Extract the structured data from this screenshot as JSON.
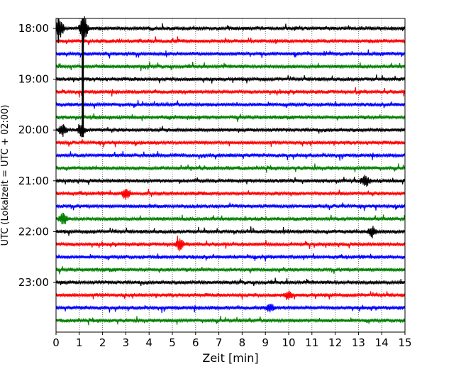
{
  "chart_data": {
    "type": "line",
    "title": "",
    "xlabel": "Zeit  [min]",
    "ylabel": "UTC (Lokalzeit = UTC + 02:00)",
    "xlim": [
      0,
      15
    ],
    "x_ticks": [
      "0",
      "1",
      "2",
      "3",
      "4",
      "5",
      "6",
      "7",
      "8",
      "9",
      "10",
      "11",
      "12",
      "13",
      "14",
      "15"
    ],
    "y_ticks": [
      {
        "label": "18:00",
        "row": 0
      },
      {
        "label": "19:00",
        "row": 4
      },
      {
        "label": "20:00",
        "row": 8
      },
      {
        "label": "21:00",
        "row": 12
      },
      {
        "label": "22:00",
        "row": 16
      },
      {
        "label": "23:00",
        "row": 20
      }
    ],
    "grid": "vertical-dotted",
    "row_interval_min": 15,
    "row_count": 24,
    "row_colors": [
      "#000000",
      "#ff0000",
      "#0000ff",
      "#008000"
    ],
    "row_start_times": [
      "18:00",
      "18:15",
      "18:30",
      "18:45",
      "19:00",
      "19:15",
      "19:30",
      "19:45",
      "20:00",
      "20:15",
      "20:30",
      "20:45",
      "21:00",
      "21:15",
      "21:30",
      "21:45",
      "22:00",
      "22:15",
      "22:30",
      "22:45",
      "23:00",
      "23:15",
      "23:30",
      "23:45"
    ],
    "events": [
      {
        "row": 0,
        "x": 0.15,
        "amplitude": "large"
      },
      {
        "row": 0,
        "x": 1.2,
        "amplitude": "very-large"
      },
      {
        "row": 8,
        "x": 0.3,
        "amplitude": "medium"
      },
      {
        "row": 8,
        "x": 1.1,
        "amplitude": "medium"
      },
      {
        "row": 13,
        "x": 3.0,
        "amplitude": "medium"
      },
      {
        "row": 12,
        "x": 13.3,
        "amplitude": "medium"
      },
      {
        "row": 15,
        "x": 0.3,
        "amplitude": "medium"
      },
      {
        "row": 16,
        "x": 13.6,
        "amplitude": "medium"
      },
      {
        "row": 17,
        "x": 5.3,
        "amplitude": "medium"
      },
      {
        "row": 21,
        "x": 10.0,
        "amplitude": "small"
      },
      {
        "row": 22,
        "x": 9.2,
        "amplitude": "small"
      }
    ]
  }
}
